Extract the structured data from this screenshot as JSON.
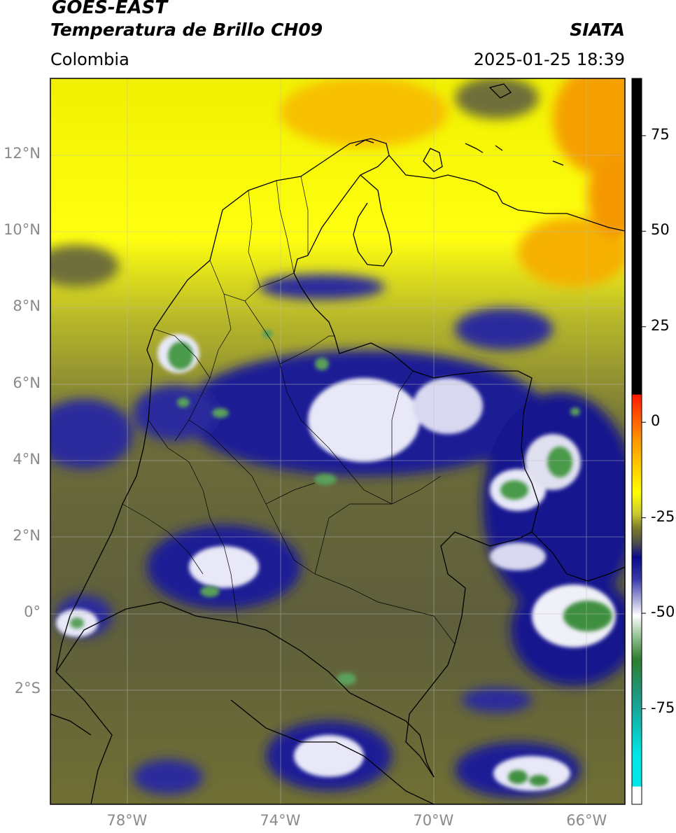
{
  "header": {
    "satellite": "GOES-EAST",
    "product": "Temperatura de Brillo CH09",
    "region": "Colombia",
    "source": "SIATA",
    "timestamp": "2025-01-25 18:39"
  },
  "map": {
    "lat_ticks": [
      {
        "label": "12°N",
        "value": 12
      },
      {
        "label": "10°N",
        "value": 10
      },
      {
        "label": "8°N",
        "value": 8
      },
      {
        "label": "6°N",
        "value": 6
      },
      {
        "label": "4°N",
        "value": 4
      },
      {
        "label": "2°N",
        "value": 2
      },
      {
        "label": "0°",
        "value": 0
      },
      {
        "label": "2°S",
        "value": -2
      }
    ],
    "lon_ticks": [
      {
        "label": "78°W",
        "value": -78
      },
      {
        "label": "74°W",
        "value": -74
      },
      {
        "label": "70°W",
        "value": -70
      },
      {
        "label": "66°W",
        "value": -66
      }
    ],
    "extent": {
      "lon_min": -80,
      "lon_max": -65,
      "lat_min": -5,
      "lat_max": 14
    }
  },
  "colorbar": {
    "unit_hidden": true,
    "ticks": [
      {
        "label": "75",
        "value": 75
      },
      {
        "label": "50",
        "value": 50
      },
      {
        "label": "25",
        "value": 25
      },
      {
        "label": "0",
        "value": 0
      },
      {
        "label": "-25",
        "value": -25
      },
      {
        "label": "-50",
        "value": -50
      },
      {
        "label": "-75",
        "value": -75
      }
    ],
    "range": [
      -100,
      90
    ],
    "colors": {
      "black_top": "#000000",
      "red": "#ff1a00",
      "orange": "#ff9900",
      "yellow": "#ffff00",
      "olive": "#7a7a2a",
      "gray": "#4d4d4d",
      "navy": "#0a0a8c",
      "white": "#ffffff",
      "green": "#2e7d2e",
      "cyan": "#00e5e5"
    }
  }
}
